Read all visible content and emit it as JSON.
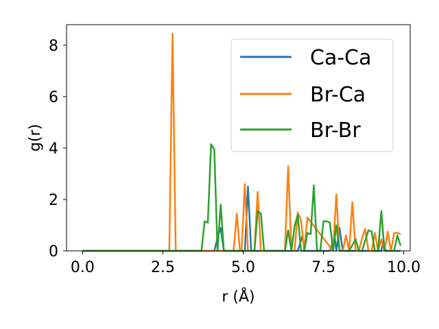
{
  "chart_data": {
    "type": "line",
    "xlabel": "r (Å)",
    "ylabel": "g(r)",
    "xlim": [
      -0.5,
      10.2
    ],
    "ylim": [
      0,
      8.8
    ],
    "xticks": [
      0.0,
      2.5,
      5.0,
      7.5,
      10.0
    ],
    "xtick_labels": [
      "0.0",
      "2.5",
      "5.0",
      "7.5",
      "10.0"
    ],
    "yticks": [
      0,
      2,
      4,
      6,
      8
    ],
    "ytick_labels": [
      "0",
      "2",
      "4",
      "6",
      "8"
    ],
    "grid": false,
    "legend_position": "upper right",
    "series": [
      {
        "name": "Ca-Ca",
        "color": "#1f77b4",
        "x": [
          0,
          4.1,
          4.2,
          4.3,
          4.4,
          5.05,
          5.15,
          5.25,
          5.35,
          6.7,
          6.8,
          6.85,
          6.9,
          7.7,
          7.85,
          7.9,
          8.0,
          8.1,
          9.3,
          9.35,
          9.45,
          9.9
        ],
        "y": [
          0,
          0,
          0.5,
          0.9,
          0,
          0,
          2.5,
          0,
          0,
          0,
          0.4,
          0.6,
          0,
          0,
          0.55,
          0,
          0.9,
          0,
          0,
          0.3,
          0,
          0
        ]
      },
      {
        "name": "Br-Ca",
        "color": "#ff7f0e",
        "x": [
          0,
          2.7,
          2.8,
          2.9,
          3.0,
          4.7,
          4.8,
          4.9,
          4.95,
          5.05,
          5.15,
          5.35,
          5.45,
          5.55,
          6.3,
          6.4,
          6.5,
          6.6,
          6.7,
          6.8,
          6.9,
          7.0,
          7.8,
          7.9,
          8.0,
          8.1,
          8.2,
          8.3,
          8.4,
          8.5,
          8.6,
          8.7,
          8.8,
          8.9,
          9.0,
          9.1,
          9.2,
          9.3,
          9.4,
          9.5,
          9.6,
          9.7,
          9.8,
          9.9
        ],
        "y": [
          0,
          0,
          8.45,
          0,
          0,
          0,
          1.45,
          0,
          0,
          2.6,
          0,
          0,
          2.3,
          0,
          0,
          3.3,
          0,
          0,
          1.5,
          1.2,
          0,
          1.3,
          0,
          2.2,
          0,
          0,
          0.6,
          0,
          1.9,
          0,
          0,
          0.5,
          0.85,
          0,
          0,
          0.7,
          0,
          0.45,
          0,
          0.75,
          0,
          0.7,
          0.7,
          0.65
        ]
      },
      {
        "name": "Br-Br",
        "color": "#2ca02c",
        "x": [
          0,
          3.7,
          3.8,
          3.9,
          4.0,
          4.1,
          4.2,
          4.3,
          4.4,
          5.35,
          5.45,
          5.55,
          5.65,
          6.3,
          6.4,
          6.5,
          6.6,
          6.7,
          6.8,
          6.9,
          7.0,
          7.1,
          7.2,
          7.3,
          7.4,
          7.5,
          7.6,
          7.7,
          7.8,
          7.9,
          8.0,
          8.1,
          8.2,
          8.3,
          8.5,
          8.6,
          8.7,
          8.9,
          9.0,
          9.1,
          9.2,
          9.3,
          9.4,
          9.5,
          9.6,
          9.7,
          9.8,
          9.9
        ],
        "y": [
          0,
          0,
          1.15,
          1.1,
          4.15,
          3.95,
          0,
          1.8,
          0,
          0,
          1.55,
          1.45,
          0,
          0,
          0.8,
          0,
          0.95,
          1.4,
          0,
          0,
          0.7,
          0.65,
          2.55,
          0,
          0,
          1.15,
          1.15,
          1.1,
          0,
          1.0,
          0,
          0,
          0,
          0,
          0.45,
          0,
          0,
          0.8,
          0.75,
          0,
          0,
          1.55,
          0,
          0,
          0,
          0,
          0.6,
          0.2
        ]
      }
    ]
  }
}
